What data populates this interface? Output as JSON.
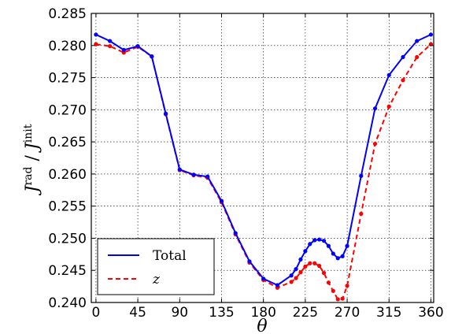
{
  "chart_data": {
    "type": "line",
    "xlabel": "θ",
    "ylabel_main": "J",
    "ylabel_sup_num": "rad",
    "ylabel_sep": " / ",
    "ylabel_sup_den": "init",
    "xlim": [
      -5,
      363
    ],
    "ylim": [
      0.24,
      0.285
    ],
    "x_ticks": [
      0,
      45,
      90,
      135,
      180,
      225,
      270,
      315,
      360
    ],
    "y_ticks": [
      0.24,
      0.245,
      0.25,
      0.255,
      0.26,
      0.265,
      0.27,
      0.275,
      0.28,
      0.285
    ],
    "y_tick_labels": [
      "0.240",
      "0.245",
      "0.250",
      "0.255",
      "0.260",
      "0.265",
      "0.270",
      "0.275",
      "0.280",
      "0.285"
    ],
    "grid": true,
    "legend_position": "bottom-left",
    "series": [
      {
        "name": "Total",
        "color": "#0000ff",
        "style": "solid",
        "x": [
          0,
          15,
          30,
          45,
          60,
          75,
          90,
          105,
          120,
          135,
          150,
          165,
          180,
          195,
          210,
          215,
          220,
          225,
          230,
          235,
          240,
          245,
          250,
          255,
          260,
          265,
          270,
          285,
          300,
          315,
          330,
          345,
          360
        ],
        "y": [
          0.2817,
          0.2807,
          0.2793,
          0.2799,
          0.2783,
          0.2694,
          0.2607,
          0.2599,
          0.2596,
          0.2558,
          0.2508,
          0.2464,
          0.2437,
          0.2427,
          0.2442,
          0.2452,
          0.2467,
          0.248,
          0.2491,
          0.2497,
          0.2498,
          0.2496,
          0.2488,
          0.2476,
          0.2469,
          0.2472,
          0.2488,
          0.2597,
          0.2702,
          0.2754,
          0.2782,
          0.2807,
          0.2817
        ]
      },
      {
        "name": "z",
        "color": "#ff0000",
        "style": "dashed",
        "x": [
          0,
          15,
          30,
          45,
          60,
          75,
          90,
          105,
          120,
          135,
          150,
          165,
          180,
          195,
          210,
          215,
          220,
          225,
          230,
          235,
          240,
          245,
          250,
          255,
          260,
          265,
          270,
          285,
          300,
          315,
          330,
          345,
          360
        ],
        "y": [
          0.2802,
          0.2799,
          0.2789,
          0.2798,
          0.2783,
          0.2693,
          0.2606,
          0.2598,
          0.2594,
          0.2556,
          0.2506,
          0.2462,
          0.2435,
          0.2423,
          0.2432,
          0.2438,
          0.2447,
          0.2456,
          0.2461,
          0.2461,
          0.2457,
          0.2446,
          0.2431,
          0.2418,
          0.2405,
          0.2406,
          0.2426,
          0.2538,
          0.2647,
          0.2705,
          0.2746,
          0.2782,
          0.2802
        ]
      }
    ]
  }
}
